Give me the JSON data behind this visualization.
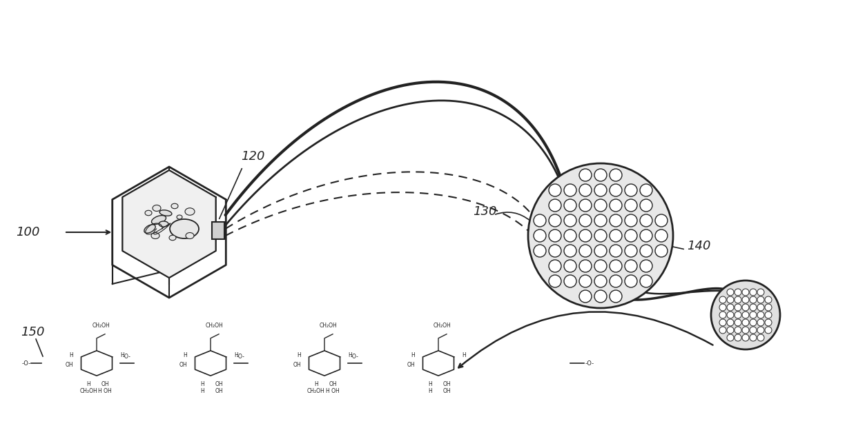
{
  "bg_color": "#ffffff",
  "label_100": "100",
  "label_120": "120",
  "label_130": "130",
  "label_140": "140",
  "label_150": "150",
  "label_color": "#222222",
  "outline_color": "#222222",
  "dashed_color": "#555555"
}
